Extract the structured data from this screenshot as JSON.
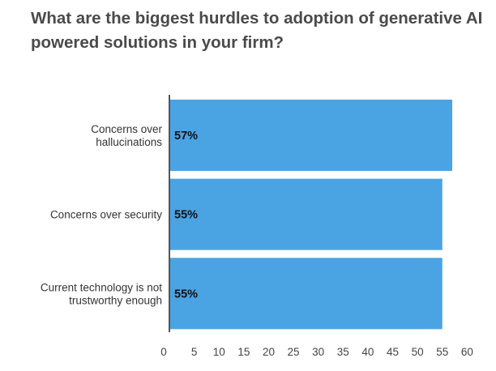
{
  "chart_data": {
    "type": "bar",
    "orientation": "horizontal",
    "title": "What are the biggest hurdles to adoption of generative AI powered solutions in your firm?",
    "categories": [
      [
        "Concerns over",
        "hallucinations"
      ],
      [
        "Concerns over security"
      ],
      [
        "Current technology is not",
        "trustworthy enough"
      ]
    ],
    "values": [
      57,
      55,
      55
    ],
    "data_labels": [
      "57%",
      "55%",
      "55%"
    ],
    "xlim": [
      0,
      60
    ],
    "xticks": [
      0,
      5,
      10,
      15,
      20,
      25,
      30,
      35,
      40,
      45,
      50,
      55,
      60
    ],
    "grid": false,
    "bar_color": "#4aa3e3",
    "axis_color": "#555555"
  }
}
